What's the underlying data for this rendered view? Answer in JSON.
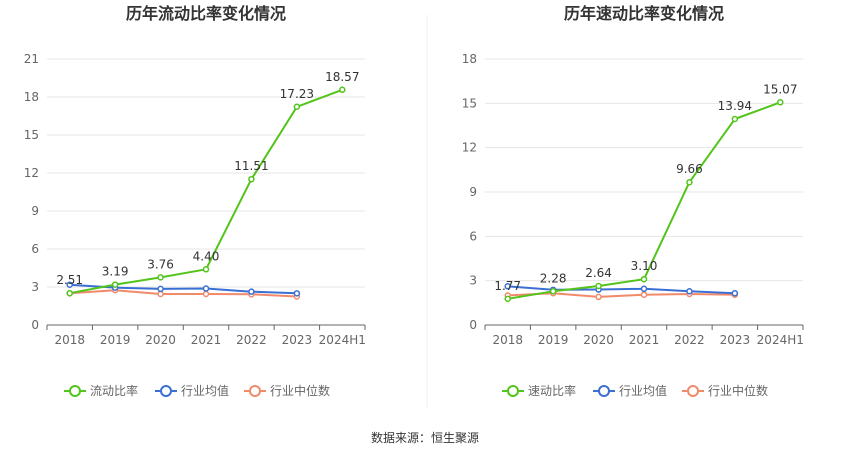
{
  "chart_data": [
    {
      "type": "line",
      "title": "历年流动比率变化情况",
      "categories": [
        "2018",
        "2019",
        "2020",
        "2021",
        "2022",
        "2023",
        "2024H1"
      ],
      "ylim": [
        0,
        21
      ],
      "yticks": [
        0,
        3,
        6,
        9,
        12,
        15,
        18,
        21
      ],
      "grid": true,
      "legend_position": "bottom",
      "series": [
        {
          "name": "流动比率",
          "color": "#52c41a",
          "values": [
            2.51,
            3.19,
            3.76,
            4.4,
            11.51,
            17.23,
            18.57
          ],
          "labels": [
            "2.51",
            "3.19",
            "3.76",
            "4.40",
            "11.51",
            "17.23",
            "18.57"
          ]
        },
        {
          "name": "行业均值",
          "color": "#3b6fd4",
          "values": [
            3.18,
            2.95,
            2.85,
            2.88,
            2.63,
            2.5,
            null
          ]
        },
        {
          "name": "行业中位数",
          "color": "#f08a6a",
          "values": [
            2.5,
            2.75,
            2.45,
            2.45,
            2.42,
            2.25,
            null
          ]
        }
      ]
    },
    {
      "type": "line",
      "title": "历年速动比率变化情况",
      "categories": [
        "2018",
        "2019",
        "2020",
        "2021",
        "2022",
        "2023",
        "2024H1"
      ],
      "ylim": [
        0,
        18
      ],
      "yticks": [
        0,
        3,
        6,
        9,
        12,
        15,
        18
      ],
      "grid": true,
      "legend_position": "bottom",
      "series": [
        {
          "name": "速动比率",
          "color": "#52c41a",
          "values": [
            1.77,
            2.28,
            2.64,
            3.1,
            9.66,
            13.94,
            15.07
          ],
          "labels": [
            "1.77",
            "2.28",
            "2.64",
            "3.10",
            "9.66",
            "13.94",
            "15.07"
          ]
        },
        {
          "name": "行业均值",
          "color": "#3b6fd4",
          "values": [
            2.62,
            2.38,
            2.4,
            2.45,
            2.28,
            2.15,
            null
          ]
        },
        {
          "name": "行业中位数",
          "color": "#f08a6a",
          "values": [
            2.0,
            2.15,
            1.9,
            2.05,
            2.1,
            2.05,
            null
          ]
        }
      ]
    }
  ],
  "source": "数据来源：恒生聚源"
}
